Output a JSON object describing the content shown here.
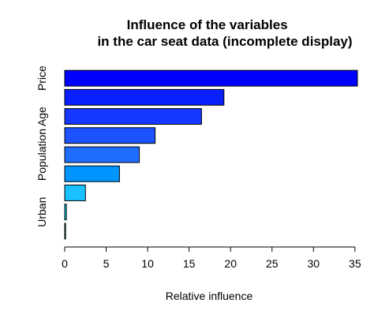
{
  "chart_data": {
    "type": "bar",
    "orientation": "horizontal",
    "title": "Influence of the variables\nin the car seat data (incomplete display)",
    "xlabel": "Relative influence",
    "ylabel": "",
    "xlim": [
      0,
      35
    ],
    "x_ticks": [
      0,
      5,
      10,
      15,
      20,
      25,
      30,
      35
    ],
    "categories": [
      "Price",
      "",
      "Age",
      "",
      "Population",
      "",
      "",
      "Urban",
      ""
    ],
    "y_tick_labels": [
      "Price",
      "Age",
      "Population",
      "Urban"
    ],
    "values": [
      35.3,
      19.2,
      16.5,
      10.9,
      9.0,
      6.6,
      2.5,
      0.2,
      0.1
    ],
    "bar_colors": [
      "#0000FF",
      "#0A20FF",
      "#1537FF",
      "#1C52FF",
      "#1F6DFF",
      "#0094FF",
      "#19C2FF",
      "#00DDFF",
      "#00FFFF"
    ],
    "grid": false,
    "legend": "none"
  }
}
